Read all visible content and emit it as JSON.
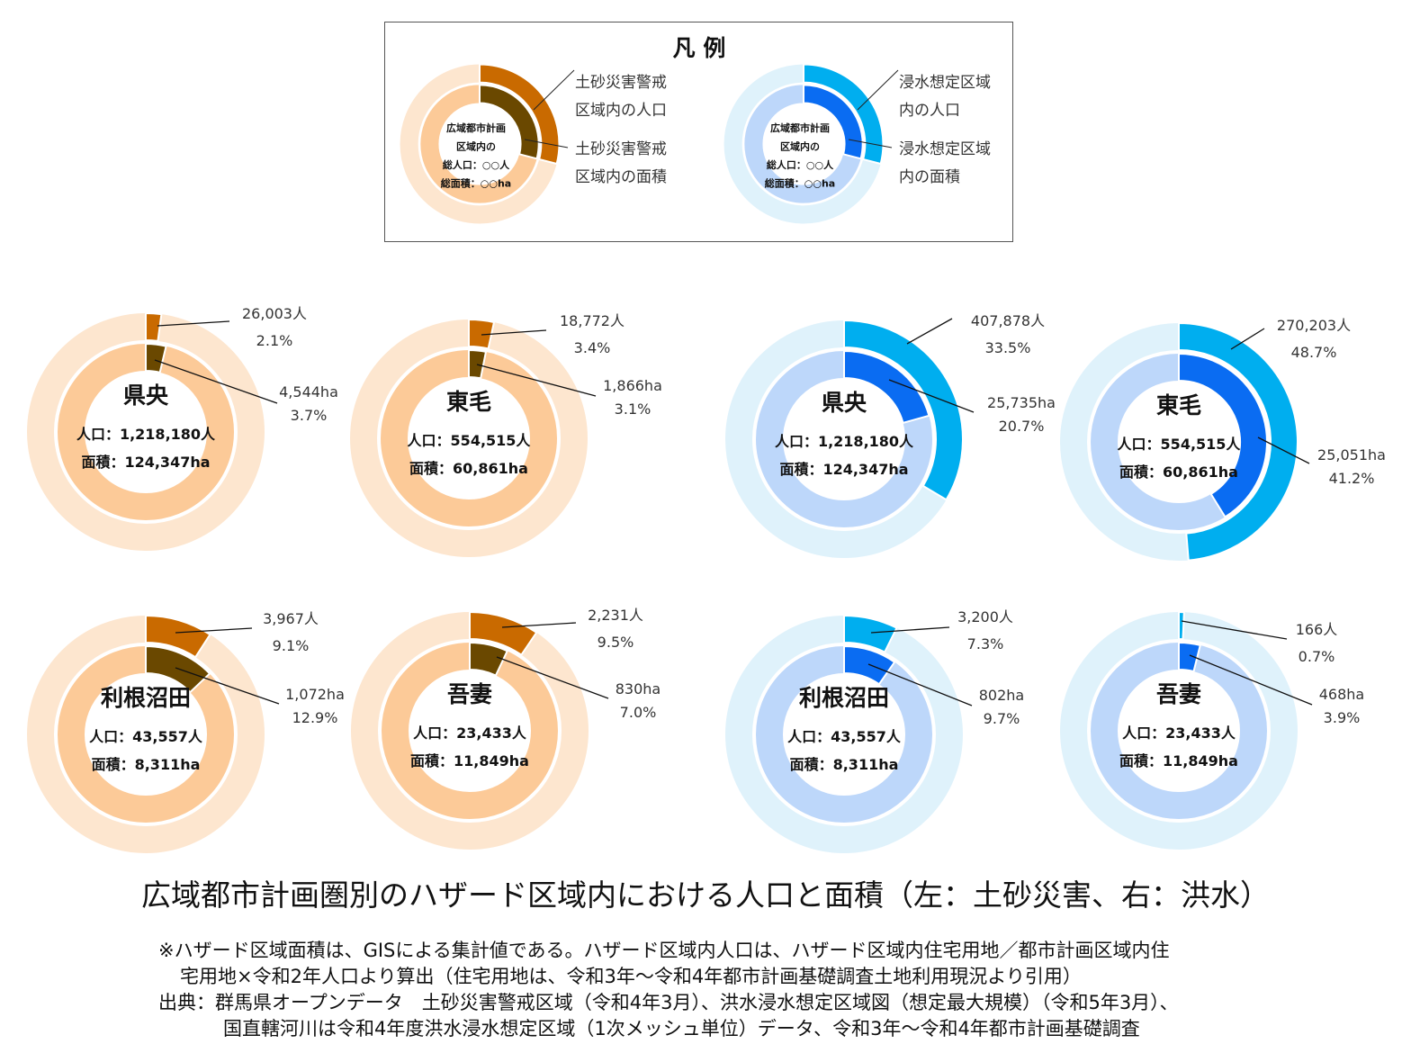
{
  "legend": {
    "title": "凡 例",
    "sediment": {
      "center_lines": [
        "広域都市計画",
        "区域内の",
        "総人口：○○人",
        "総面積：○○ha"
      ],
      "outer_label": [
        "土砂災害警戒",
        "区域内の人口"
      ],
      "inner_label": [
        "土砂災害警戒",
        "区域内の面積"
      ]
    },
    "flood": {
      "center_lines": [
        "広域都市計画",
        "区域内の",
        "総人口：○○人",
        "総面積：○○ha"
      ],
      "outer_label": [
        "浸水想定区域",
        "内の人口"
      ],
      "inner_label": [
        "浸水想定区域",
        "内の面積"
      ]
    }
  },
  "colors": {
    "sediment": {
      "outer_bg": "#fde6cf",
      "inner_bg": "#fcca98",
      "outer_hl": "#c96a00",
      "inner_hl": "#6a4800"
    },
    "flood": {
      "outer_bg": "#dff2fb",
      "inner_bg": "#bdd7fa",
      "outer_hl": "#00aeef",
      "inner_hl": "#0a6cf2"
    }
  },
  "chart_data": [
    {
      "type": "donut",
      "hazard": "sediment",
      "region": "県央",
      "population": "人口：1,218,180人",
      "area": "面積：124,347ha",
      "pop_label": "26,003人",
      "pop_pct": 2.1,
      "area_label": "4,544ha",
      "area_pct": 3.7
    },
    {
      "type": "donut",
      "hazard": "sediment",
      "region": "東毛",
      "population": "人口：554,515人",
      "area": "面積：60,861ha",
      "pop_label": "18,772人",
      "pop_pct": 3.4,
      "area_label": "1,866ha",
      "area_pct": 3.1
    },
    {
      "type": "donut",
      "hazard": "flood",
      "region": "県央",
      "population": "人口：1,218,180人",
      "area": "面積：124,347ha",
      "pop_label": "407,878人",
      "pop_pct": 33.5,
      "area_label": "25,735ha",
      "area_pct": 20.7
    },
    {
      "type": "donut",
      "hazard": "flood",
      "region": "東毛",
      "population": "人口：554,515人",
      "area": "面積：60,861ha",
      "pop_label": "270,203人",
      "pop_pct": 48.7,
      "area_label": "25,051ha",
      "area_pct": 41.2
    },
    {
      "type": "donut",
      "hazard": "sediment",
      "region": "利根沼田",
      "population": "人口：43,557人",
      "area": "面積：8,311ha",
      "pop_label": "3,967人",
      "pop_pct": 9.1,
      "area_label": "1,072ha",
      "area_pct": 12.9
    },
    {
      "type": "donut",
      "hazard": "sediment",
      "region": "吾妻",
      "population": "人口：23,433人",
      "area": "面積：11,849ha",
      "pop_label": "2,231人",
      "pop_pct": 9.5,
      "area_label": "830ha",
      "area_pct": 7.0
    },
    {
      "type": "donut",
      "hazard": "flood",
      "region": "利根沼田",
      "population": "人口：43,557人",
      "area": "面積：8,311ha",
      "pop_label": "3,200人",
      "pop_pct": 7.3,
      "area_label": "802ha",
      "area_pct": 9.7
    },
    {
      "type": "donut",
      "hazard": "flood",
      "region": "吾妻",
      "population": "人口：23,433人",
      "area": "面積：11,849ha",
      "pop_label": "166人",
      "pop_pct": 0.7,
      "area_label": "468ha",
      "area_pct": 3.9
    }
  ],
  "title": "広域都市計画圏別のハザード区域内における人口と面積（左：土砂災害、右：洪水）",
  "notes": [
    "※ハザード区域面積は、GISによる集計値である。ハザード区域内人口は、ハザード区域内住宅用地／都市計画区域内住",
    "宅用地×令和2年人口より算出（住宅用地は、令和3年～令和4年都市計画基礎調査土地利用現況より引用）",
    "出典：群馬県オープンデータ　土砂災害警戒区域（令和4年3月）、洪水浸水想定区域図（想定最大規模）（令和5年3月）、",
    "国直轄河川は令和4年度洪水浸水想定区域（1次メッシュ単位）データ、令和3年～令和4年都市計画基礎調査"
  ]
}
